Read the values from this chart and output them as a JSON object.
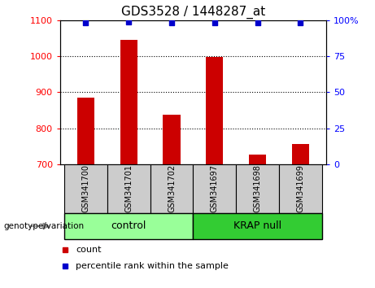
{
  "title": "GDS3528 / 1448287_at",
  "samples": [
    "GSM341700",
    "GSM341701",
    "GSM341702",
    "GSM341697",
    "GSM341698",
    "GSM341699"
  ],
  "counts": [
    885,
    1045,
    838,
    997,
    727,
    757
  ],
  "percentile_ranks": [
    98,
    99,
    98,
    98,
    98,
    98
  ],
  "ylim_left": [
    700,
    1100
  ],
  "ylim_right": [
    0,
    100
  ],
  "yticks_left": [
    700,
    800,
    900,
    1000,
    1100
  ],
  "yticks_right": [
    0,
    25,
    50,
    75,
    100
  ],
  "bar_color": "#cc0000",
  "dot_color": "#0000cc",
  "groups": [
    {
      "label": "control",
      "indices": [
        0,
        1,
        2
      ],
      "color": "#99ff99"
    },
    {
      "label": "KRAP null",
      "indices": [
        3,
        4,
        5
      ],
      "color": "#33cc33"
    }
  ],
  "group_label_prefix": "genotype/variation",
  "legend_items": [
    {
      "label": "count",
      "color": "#cc0000"
    },
    {
      "label": "percentile rank within the sample",
      "color": "#0000cc"
    }
  ],
  "sample_box_color": "#cccccc",
  "title_fontsize": 11,
  "bar_width": 0.4
}
